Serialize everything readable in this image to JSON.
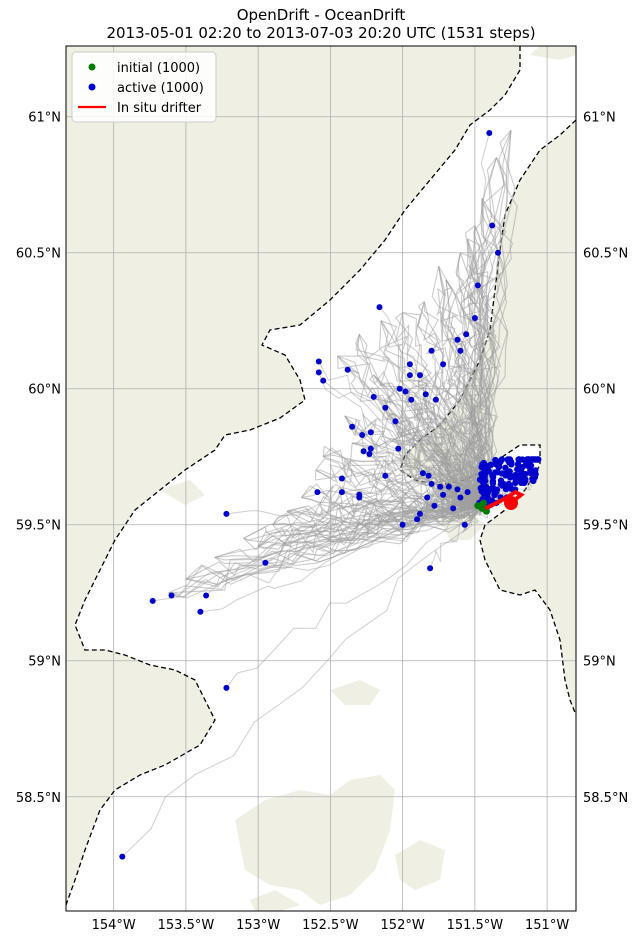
{
  "title": {
    "line1": "OpenDrift - OceanDrift",
    "line2": "2013-05-01 02:20 to 2013-07-03 20:20 UTC (1531 steps)"
  },
  "legend": {
    "placement": "top-left",
    "items": [
      {
        "label": "initial (1000)",
        "color": "#007a00",
        "marker": "dot"
      },
      {
        "label": "active (1000)",
        "color": "#0000cc",
        "marker": "dot"
      },
      {
        "label": "In situ drifter",
        "color": "#ff0000",
        "marker": "line"
      }
    ]
  },
  "colors": {
    "land": "#efefe4",
    "sea": "#ffffff",
    "grid": "#b0b0b0",
    "trajectory": "#a0a0a0",
    "boundary": "#000000"
  },
  "axes": {
    "x_ticks": [
      "154°W",
      "153.5°W",
      "153°W",
      "152.5°W",
      "152°W",
      "151.5°W",
      "151°W"
    ],
    "y_ticks": [
      "61°N",
      "60.5°N",
      "60°N",
      "59.5°N",
      "59°N",
      "58.5°N"
    ],
    "lon_range": [
      -154.33,
      -150.8
    ],
    "lat_range": [
      58.08,
      61.26
    ],
    "grid": true
  },
  "chart_data": {
    "type": "scatter",
    "xlabel": "",
    "ylabel": "",
    "series": [
      {
        "name": "active (1000)",
        "color": "#0000cc",
        "points": [
          [
            -151.4,
            60.94
          ],
          [
            -151.38,
            60.6
          ],
          [
            -151.34,
            60.5
          ],
          [
            -151.48,
            60.38
          ],
          [
            -152.16,
            60.3
          ],
          [
            -151.5,
            60.26
          ],
          [
            -151.56,
            60.2
          ],
          [
            -151.62,
            60.18
          ],
          [
            -151.6,
            60.14
          ],
          [
            -151.8,
            60.14
          ],
          [
            -151.72,
            60.09
          ],
          [
            -151.95,
            60.09
          ],
          [
            -152.58,
            60.1
          ],
          [
            -152.58,
            60.06
          ],
          [
            -152.38,
            60.07
          ],
          [
            -151.95,
            60.05
          ],
          [
            -151.88,
            60.05
          ],
          [
            -152.55,
            60.03
          ],
          [
            -152.02,
            60.0
          ],
          [
            -151.98,
            59.99
          ],
          [
            -152.2,
            59.97
          ],
          [
            -151.84,
            59.98
          ],
          [
            -151.77,
            59.96
          ],
          [
            -151.94,
            59.96
          ],
          [
            -152.12,
            59.93
          ],
          [
            -152.05,
            59.88
          ],
          [
            -152.35,
            59.86
          ],
          [
            -152.22,
            59.84
          ],
          [
            -152.28,
            59.83
          ],
          [
            -152.22,
            59.78
          ],
          [
            -152.27,
            59.77
          ],
          [
            -152.23,
            59.76
          ],
          [
            -152.03,
            59.78
          ],
          [
            -152.12,
            59.68
          ],
          [
            -152.42,
            59.67
          ],
          [
            -152.42,
            59.62
          ],
          [
            -152.3,
            59.61
          ],
          [
            -152.3,
            59.6
          ],
          [
            -152.59,
            59.62
          ],
          [
            -152.0,
            59.5
          ],
          [
            -151.81,
            59.34
          ],
          [
            -151.57,
            59.5
          ],
          [
            -151.9,
            59.52
          ],
          [
            -151.88,
            59.54
          ],
          [
            -151.78,
            59.57
          ],
          [
            -151.65,
            59.56
          ],
          [
            -151.72,
            59.61
          ],
          [
            -151.83,
            59.6
          ],
          [
            -151.6,
            59.6
          ],
          [
            -151.55,
            59.62
          ],
          [
            -151.68,
            59.64
          ],
          [
            -151.8,
            59.65
          ],
          [
            -151.86,
            59.69
          ],
          [
            -151.82,
            59.68
          ],
          [
            -151.74,
            59.64
          ],
          [
            -151.62,
            59.63
          ],
          [
            -153.22,
            59.54
          ],
          [
            -152.95,
            59.36
          ],
          [
            -153.6,
            59.24
          ],
          [
            -153.73,
            59.22
          ],
          [
            -153.36,
            59.24
          ],
          [
            -153.4,
            59.18
          ],
          [
            -153.22,
            58.9
          ],
          [
            -153.94,
            58.28
          ],
          [
            -151.42,
            59.6
          ],
          [
            -151.35,
            59.62
          ],
          [
            -151.3,
            59.65
          ],
          [
            -151.25,
            59.68
          ],
          [
            -151.18,
            59.7
          ],
          [
            -151.12,
            59.72
          ],
          [
            -151.08,
            59.7
          ],
          [
            -151.15,
            59.66
          ],
          [
            -151.22,
            59.63
          ],
          [
            -151.28,
            59.6
          ],
          [
            -151.35,
            59.58
          ],
          [
            -151.4,
            59.57
          ]
        ]
      },
      {
        "name": "initial (1000)",
        "color": "#007a00",
        "points": [
          [
            -151.48,
            59.57
          ],
          [
            -151.45,
            59.56
          ],
          [
            -151.42,
            59.55
          ],
          [
            -151.44,
            59.58
          ]
        ]
      },
      {
        "name": "In situ drifter",
        "color": "#ff0000",
        "points": [
          [
            -151.43,
            59.56
          ],
          [
            -151.35,
            59.58
          ],
          [
            -151.28,
            59.6
          ],
          [
            -151.22,
            59.62
          ],
          [
            -151.18,
            59.61
          ],
          [
            -151.25,
            59.58
          ]
        ]
      }
    ]
  }
}
